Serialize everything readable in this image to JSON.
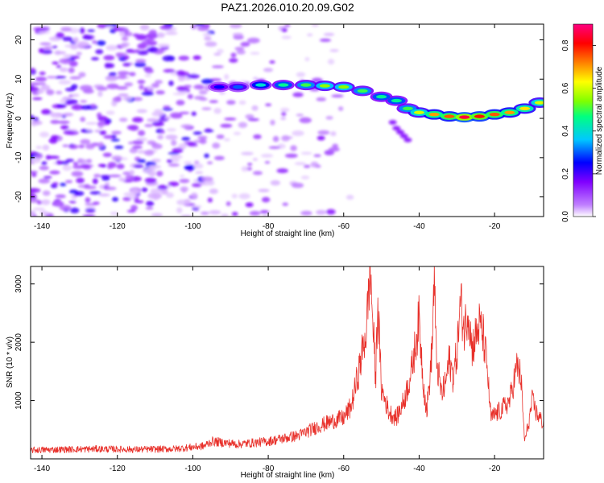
{
  "title": "PAZ1.2026.010.20.09.G02",
  "chart_data": [
    {
      "type": "heatmap",
      "name": "spectrogram",
      "xlabel": "Height of straight line (km)",
      "ylabel": "Frequency (Hz)",
      "xlim": [
        -143,
        -7
      ],
      "ylim": [
        -25,
        24
      ],
      "xticks": [
        -140,
        -120,
        -100,
        -80,
        -60,
        -40,
        -20
      ],
      "yticks": [
        -20,
        -10,
        0,
        10,
        20
      ],
      "colorbar": {
        "label": "Normalized spectral amplitude",
        "ticks": [
          0.0,
          0.2,
          0.4,
          0.6,
          0.8
        ],
        "range": [
          0.0,
          0.9
        ],
        "colors": [
          "#ffffff",
          "#c080ff",
          "#8000ff",
          "#0000ff",
          "#00c8ff",
          "#00ff80",
          "#80ff00",
          "#ffff00",
          "#ff8000",
          "#ff0000",
          "#ff0080"
        ]
      },
      "ridge": [
        {
          "x": -93,
          "y": 8.0,
          "amp": 0.25
        },
        {
          "x": -88,
          "y": 8.0,
          "amp": 0.3
        },
        {
          "x": -82,
          "y": 8.5,
          "amp": 0.4
        },
        {
          "x": -76,
          "y": 8.5,
          "amp": 0.45
        },
        {
          "x": -70,
          "y": 8.5,
          "amp": 0.5
        },
        {
          "x": -65,
          "y": 8.3,
          "amp": 0.55
        },
        {
          "x": -60,
          "y": 8.0,
          "amp": 0.55
        },
        {
          "x": -55,
          "y": 7.0,
          "amp": 0.5
        },
        {
          "x": -50,
          "y": 5.5,
          "amp": 0.45
        },
        {
          "x": -46,
          "y": 4.5,
          "amp": 0.45
        },
        {
          "x": -43,
          "y": 2.5,
          "amp": 0.5
        },
        {
          "x": -40,
          "y": 1.5,
          "amp": 0.6
        },
        {
          "x": -36,
          "y": 1.0,
          "amp": 0.7
        },
        {
          "x": -32,
          "y": 0.5,
          "amp": 0.75
        },
        {
          "x": -28,
          "y": 0.3,
          "amp": 0.85
        },
        {
          "x": -24,
          "y": 0.5,
          "amp": 0.8
        },
        {
          "x": -20,
          "y": 1.0,
          "amp": 0.75
        },
        {
          "x": -16,
          "y": 1.5,
          "amp": 0.7
        },
        {
          "x": -12,
          "y": 2.5,
          "amp": 0.65
        },
        {
          "x": -8,
          "y": 4.0,
          "amp": 0.6
        }
      ]
    },
    {
      "type": "line",
      "name": "snr",
      "xlabel": "Height of straight line (km)",
      "ylabel": "SNR (10 * v/v)",
      "xlim": [
        -143,
        -7
      ],
      "ylim": [
        0,
        3300
      ],
      "xticks": [
        -140,
        -120,
        -100,
        -80,
        -60,
        -40,
        -20
      ],
      "yticks": [
        1000,
        2000,
        3000
      ],
      "color": "#e8302a",
      "series": [
        {
          "name": "SNR",
          "x": [
            -143,
            -135,
            -125,
            -115,
            -105,
            -97,
            -95,
            -88,
            -80,
            -72,
            -67,
            -63,
            -60,
            -58,
            -56,
            -54,
            -53,
            -52,
            -51.5,
            -51,
            -50,
            -48,
            -46,
            -44,
            -42,
            -40,
            -39,
            -38,
            -37,
            -36.5,
            -36,
            -35.5,
            -35,
            -34,
            -33,
            -32,
            -31,
            -30,
            -29,
            -28,
            -27,
            -26,
            -25,
            -24,
            -23,
            -22,
            -21,
            -20,
            -18,
            -16,
            -14,
            -13,
            -12.5,
            -12,
            -11,
            -10,
            -9,
            -8,
            -7
          ],
          "y": [
            150,
            160,
            170,
            160,
            170,
            220,
            300,
            250,
            300,
            400,
            550,
            650,
            700,
            900,
            1500,
            2200,
            3300,
            2000,
            1300,
            2750,
            1200,
            800,
            700,
            1000,
            1500,
            2400,
            1400,
            800,
            1500,
            2000,
            3200,
            1800,
            1500,
            1100,
            1300,
            1700,
            1400,
            1800,
            2700,
            2200,
            2600,
            1900,
            2100,
            2300,
            2100,
            1600,
            700,
            750,
            850,
            1000,
            1600,
            1400,
            800,
            300,
            600,
            1000,
            800,
            700,
            600
          ]
        }
      ]
    }
  ]
}
